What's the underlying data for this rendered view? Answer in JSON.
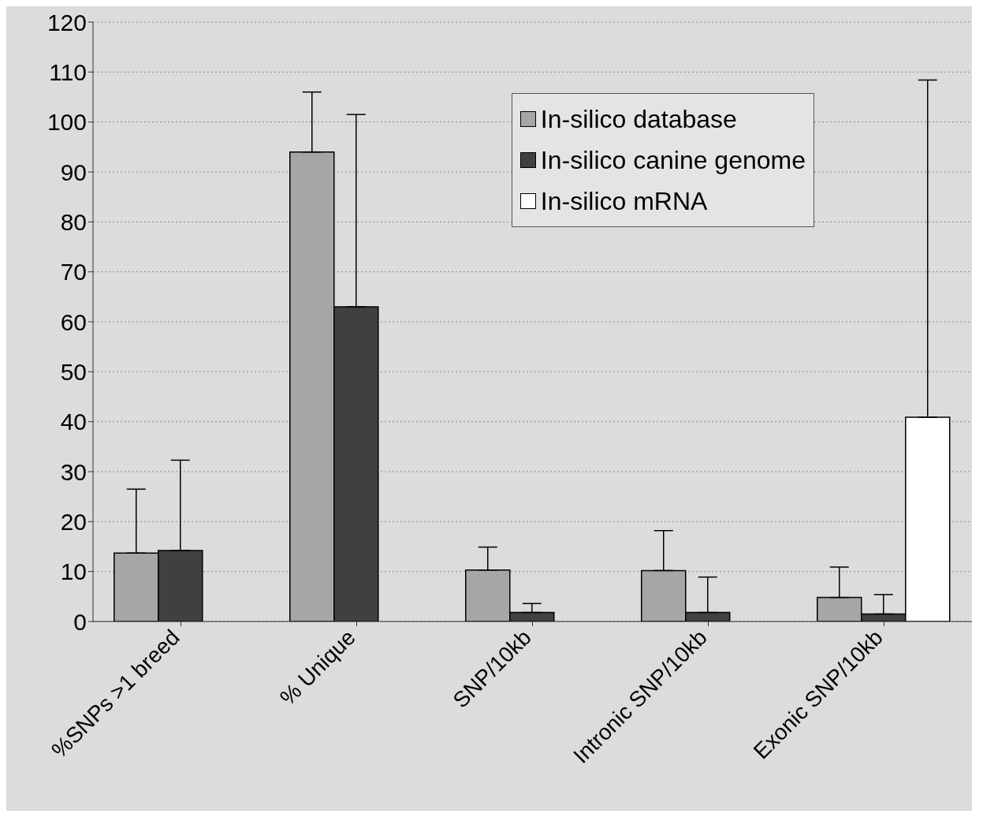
{
  "chart_data": {
    "type": "bar",
    "categories": [
      "%SNPs >1 breed",
      "% Unique",
      "SNP/10kb",
      "Intronic SNP/10kb",
      "Exonic SNP/10kb"
    ],
    "series": [
      {
        "name": "In-silico database",
        "color": "#a6a6a6",
        "values": [
          13.7,
          94,
          10.3,
          10.2,
          4.8
        ],
        "errors": [
          [
            13.7,
            26.5
          ],
          [
            94,
            106
          ],
          [
            10.3,
            14.9
          ],
          [
            10.2,
            18.2
          ],
          [
            4.8,
            10.9
          ]
        ]
      },
      {
        "name": "In-silico canine genome",
        "color": "#404040",
        "values": [
          14.2,
          63,
          1.8,
          1.8,
          1.5
        ],
        "errors": [
          [
            14.2,
            32.3
          ],
          [
            63,
            101.5
          ],
          [
            1.8,
            3.6
          ],
          [
            1.8,
            8.9
          ],
          [
            1.5,
            5.4
          ]
        ]
      },
      {
        "name": "In-silico mRNA",
        "color": "#ffffff",
        "values": [
          null,
          null,
          null,
          null,
          40.9
        ],
        "errors": [
          null,
          null,
          null,
          null,
          [
            40.9,
            108.4
          ]
        ]
      }
    ],
    "ylim": [
      0,
      120
    ],
    "yticks": [
      0,
      10,
      20,
      30,
      40,
      50,
      60,
      70,
      80,
      90,
      100,
      110,
      120
    ],
    "grid": "y",
    "legend": "top right"
  }
}
